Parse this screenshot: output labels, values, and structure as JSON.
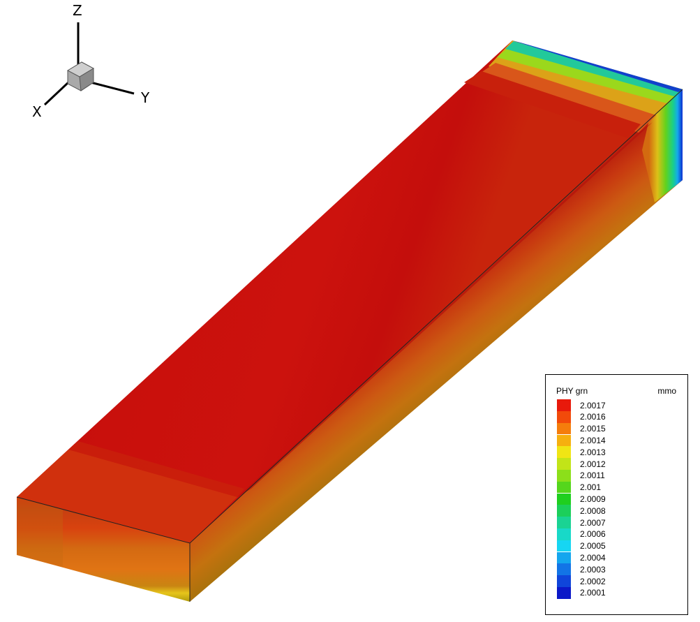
{
  "axes": {
    "z_label": "Z",
    "x_label": "X",
    "y_label": "Y"
  },
  "legend": {
    "title": "PHY grn",
    "unit": "mmo",
    "levels": [
      {
        "label": "2.0017",
        "color": "#e8190b"
      },
      {
        "label": "2.0016",
        "color": "#f24a0a"
      },
      {
        "label": "2.0015",
        "color": "#f57d0c"
      },
      {
        "label": "2.0014",
        "color": "#f6b00f"
      },
      {
        "label": "2.0013",
        "color": "#f0e514"
      },
      {
        "label": "2.0012",
        "color": "#c2e418"
      },
      {
        "label": "2.0011",
        "color": "#8cdf1a"
      },
      {
        "label": "2.001",
        "color": "#55d61c"
      },
      {
        "label": "2.0009",
        "color": "#1fcf1f"
      },
      {
        "label": "2.0008",
        "color": "#1ccf5a"
      },
      {
        "label": "2.0007",
        "color": "#1ad393"
      },
      {
        "label": "2.0006",
        "color": "#18d9c8"
      },
      {
        "label": "2.0005",
        "color": "#16d6f3"
      },
      {
        "label": "2.0004",
        "color": "#14a6ee"
      },
      {
        "label": "2.0003",
        "color": "#1274e6"
      },
      {
        "label": "2.0002",
        "color": "#0f45da"
      },
      {
        "label": "2.0001",
        "color": "#0b18c8"
      }
    ]
  }
}
